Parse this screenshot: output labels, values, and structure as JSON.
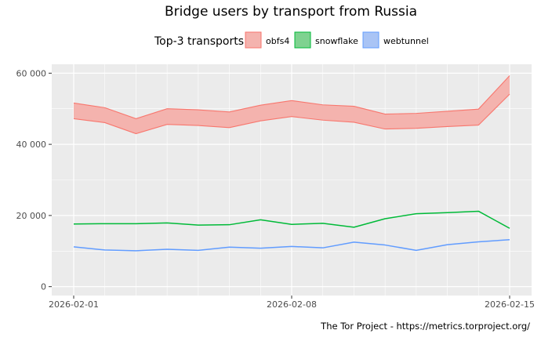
{
  "chart_data": {
    "type": "area",
    "title": "Bridge users by transport from Russia",
    "subtitle": "",
    "xlabel": "",
    "ylabel": "",
    "caption": "The Tor Project - https://metrics.torproject.org/",
    "legend": {
      "title": "Top-3 transports",
      "placement": "top",
      "entries": [
        {
          "name": "obfs4",
          "fill": "#f4b3ae",
          "stroke": "#f8766d"
        },
        {
          "name": "snowflake",
          "fill": "#7fd290",
          "stroke": "#00ba38"
        },
        {
          "name": "webtunnel",
          "fill": "#a9c4f5",
          "stroke": "#619cff"
        }
      ]
    },
    "x": [
      "2026-02-01",
      "2026-02-02",
      "2026-02-03",
      "2026-02-04",
      "2026-02-05",
      "2026-02-06",
      "2026-02-07",
      "2026-02-08",
      "2026-02-09",
      "2026-02-10",
      "2026-02-11",
      "2026-02-12",
      "2026-02-13",
      "2026-02-14",
      "2026-02-15"
    ],
    "x_ticks": [
      "2026-02-01",
      "2026-02-08",
      "2026-02-15"
    ],
    "ylim": [
      -2500,
      62500
    ],
    "y_ticks": [
      0,
      20000,
      40000,
      60000
    ],
    "y_tick_labels": [
      "0",
      "20 000",
      "40 000",
      "60 000"
    ],
    "grid": true,
    "panel_background": "#ebebeb",
    "series": [
      {
        "name": "obfs4",
        "type": "ribbon",
        "color": "#f8766d",
        "fill": "#f4b3ae",
        "lower": [
          47200,
          46100,
          43000,
          45600,
          45300,
          44700,
          46600,
          47800,
          46800,
          46200,
          44300,
          44500,
          45000,
          45400,
          54100
        ],
        "upper": [
          51600,
          50300,
          47200,
          50000,
          49700,
          49100,
          51000,
          52300,
          51100,
          50700,
          48500,
          48700,
          49300,
          49900,
          59300
        ]
      },
      {
        "name": "snowflake",
        "type": "line",
        "color": "#00ba38",
        "values": [
          17600,
          17700,
          17700,
          17900,
          17300,
          17400,
          18800,
          17500,
          17800,
          16700,
          19100,
          20500,
          20800,
          21200,
          16400
        ]
      },
      {
        "name": "webtunnel",
        "type": "line",
        "color": "#619cff",
        "values": [
          11200,
          10300,
          10100,
          10500,
          10200,
          11100,
          10800,
          11300,
          10900,
          12500,
          11700,
          10200,
          11800,
          12600,
          13200
        ]
      }
    ]
  }
}
